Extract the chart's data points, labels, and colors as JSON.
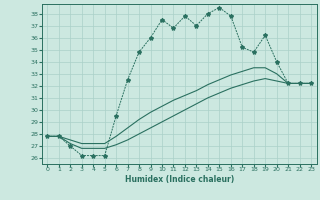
{
  "xlabel": "Humidex (Indice chaleur)",
  "background_color": "#cce8e0",
  "grid_color": "#aad0c8",
  "line_color": "#2a7060",
  "xlim": [
    -0.5,
    23.5
  ],
  "ylim": [
    25.5,
    38.8
  ],
  "xticks": [
    0,
    1,
    2,
    3,
    4,
    5,
    6,
    7,
    8,
    9,
    10,
    11,
    12,
    13,
    14,
    15,
    16,
    17,
    18,
    19,
    20,
    21,
    22,
    23
  ],
  "yticks": [
    26,
    27,
    28,
    29,
    30,
    31,
    32,
    33,
    34,
    35,
    36,
    37,
    38
  ],
  "series1": [
    27.8,
    27.8,
    27.0,
    26.2,
    26.2,
    26.2,
    29.5,
    32.5,
    34.8,
    36.0,
    37.5,
    36.8,
    37.8,
    37.0,
    38.0,
    38.5,
    37.8,
    35.2,
    34.8,
    36.2,
    34.0,
    32.2,
    32.2,
    32.2
  ],
  "series2": [
    27.8,
    27.8,
    27.5,
    27.2,
    27.2,
    27.2,
    27.8,
    28.5,
    29.2,
    29.8,
    30.3,
    30.8,
    31.2,
    31.6,
    32.1,
    32.5,
    32.9,
    33.2,
    33.5,
    33.5,
    33.0,
    32.2,
    32.2,
    32.2
  ],
  "series3": [
    27.8,
    27.8,
    27.2,
    26.8,
    26.8,
    26.8,
    27.1,
    27.5,
    28.0,
    28.5,
    29.0,
    29.5,
    30.0,
    30.5,
    31.0,
    31.4,
    31.8,
    32.1,
    32.4,
    32.6,
    32.4,
    32.2,
    32.2,
    32.2
  ]
}
